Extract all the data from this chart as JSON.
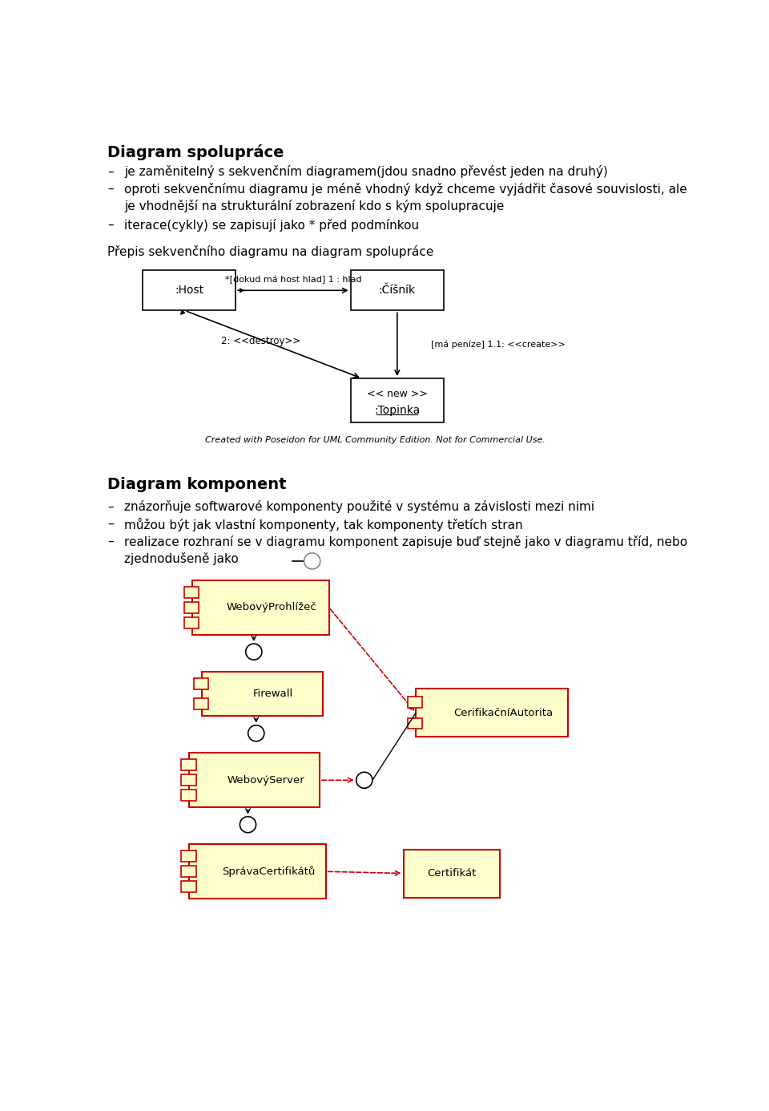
{
  "title1": "Diagram spolupráce",
  "bullet1_1": "je zaměnitelný s sekvenčním diagramem(jdou snadno převést jeden na druhý)",
  "bullet1_2a": "oproti sekvenčnímu diagramu je méně vhodný když chceme vyjádřit časové souvislosti, ale",
  "bullet1_2b": "je vhodnější na strukturální zobrazení kdo s kým spolupracuje",
  "bullet1_3": "iterace(cykly) se zapisují jako * před podmínkou",
  "subtitle1": "Přepis sekvenčního diagramu na diagram spolupráce",
  "title2": "Diagram komponent",
  "bullet2_1": "znázorňuje softwarové komponenty použité v systému a závislosti mezi nimi",
  "bullet2_2": "můžou být jak vlastní komponenty, tak komponenty třetích stran",
  "bullet2_3a": "realizace rozhraní se v diagramu komponent zapisuje buď stejně jako v diagramu tříd, nebo",
  "bullet2_3b": "zjednodušeně jako",
  "watermark": "Created with Poseidon for UML Community Edition. Not for Commercial Use.",
  "bg_color": "#ffffff",
  "text_color": "#000000",
  "component_fill": "#ffffcc",
  "component_border": "#cc0000",
  "uml_fill": "#ffffff",
  "uml_border": "#000000",
  "host_label": ":Host",
  "cisnik_label": ":Číšník",
  "topinka_label1": "<< new >>",
  "topinka_label2": ":Topinka",
  "arrow1_label": "*[dokud má host hlad] 1 : hlad",
  "arrow2_label": "2: <<destroy>>",
  "arrow3_label": "[má peníze] 1.1: <<create>>",
  "comp1_label": "WebovýProhlížeč",
  "comp2_label": "Firewall",
  "comp3_label": "WebovýServer",
  "comp4_label": "CerifikačníAutorita",
  "comp5_label": "SprávaCertifikátů",
  "comp6_label": "Certifikát"
}
